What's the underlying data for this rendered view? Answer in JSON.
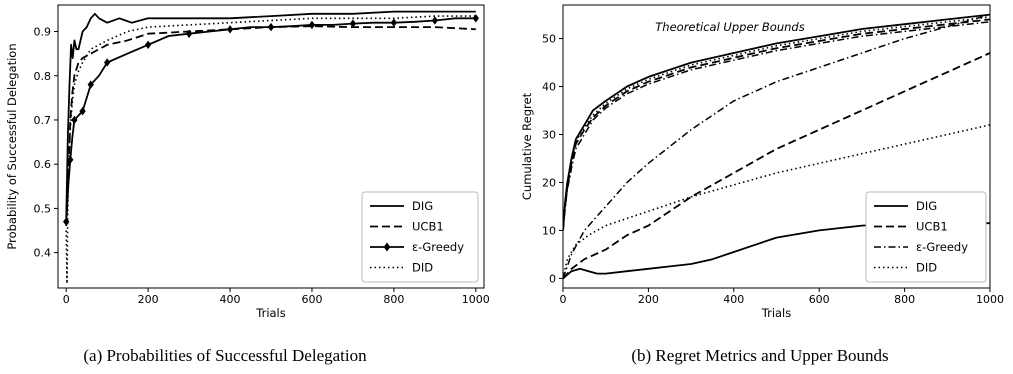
{
  "chart_data": [
    {
      "type": "line",
      "panel": "a",
      "caption": "(a) Probabilities of Successful Delegation",
      "xlabel": "Trials",
      "ylabel": "Probability of Successful Delegation",
      "xlim": [
        -20,
        1020
      ],
      "ylim": [
        0.32,
        0.96
      ],
      "xticks": [
        0,
        200,
        400,
        600,
        800,
        1000
      ],
      "yticks": [
        0.4,
        0.5,
        0.6,
        0.7,
        0.8,
        0.9
      ],
      "ytick_labels": [
        "0.4",
        "0.5",
        "0.6",
        "0.7",
        "0.8",
        "0.9"
      ],
      "grid": false,
      "legend_position": "bottom-right",
      "series": [
        {
          "name": "DIG",
          "style": "solid",
          "marker": "none",
          "x": [
            0,
            4,
            8,
            12,
            16,
            20,
            25,
            30,
            40,
            50,
            60,
            70,
            80,
            100,
            130,
            160,
            200,
            300,
            400,
            500,
            600,
            700,
            800,
            900,
            1000
          ],
          "y": [
            0.47,
            0.66,
            0.78,
            0.87,
            0.84,
            0.88,
            0.86,
            0.86,
            0.9,
            0.91,
            0.93,
            0.94,
            0.93,
            0.92,
            0.93,
            0.92,
            0.93,
            0.93,
            0.93,
            0.935,
            0.94,
            0.94,
            0.945,
            0.945,
            0.945
          ]
        },
        {
          "name": "UCB1",
          "style": "dashed",
          "marker": "none",
          "x": [
            0,
            5,
            10,
            15,
            20,
            30,
            40,
            60,
            80,
            100,
            150,
            200,
            300,
            400,
            500,
            600,
            700,
            800,
            900,
            1000
          ],
          "y": [
            0.46,
            0.55,
            0.7,
            0.76,
            0.8,
            0.83,
            0.84,
            0.85,
            0.86,
            0.87,
            0.88,
            0.895,
            0.9,
            0.905,
            0.91,
            0.912,
            0.91,
            0.91,
            0.91,
            0.905
          ]
        },
        {
          "name": "ε-Greedy",
          "style": "solid",
          "marker": "diamond",
          "x": [
            0,
            5,
            10,
            15,
            20,
            30,
            40,
            50,
            60,
            80,
            100,
            150,
            200,
            250,
            300,
            350,
            400,
            450,
            500,
            550,
            600,
            650,
            700,
            750,
            800,
            850,
            900,
            950,
            1000
          ],
          "y": [
            0.47,
            0.55,
            0.61,
            0.66,
            0.7,
            0.71,
            0.72,
            0.75,
            0.78,
            0.8,
            0.83,
            0.85,
            0.87,
            0.89,
            0.895,
            0.9,
            0.905,
            0.91,
            0.91,
            0.912,
            0.915,
            0.915,
            0.918,
            0.92,
            0.92,
            0.922,
            0.925,
            0.93,
            0.93
          ]
        },
        {
          "name": "DID",
          "style": "dotted",
          "marker": "none",
          "x": [
            0,
            2,
            4,
            6,
            10,
            15,
            20,
            30,
            40,
            60,
            80,
            100,
            150,
            200,
            300,
            400,
            500,
            600,
            700,
            800,
            900,
            1000
          ],
          "y": [
            0.45,
            0.33,
            0.5,
            0.6,
            0.68,
            0.74,
            0.78,
            0.81,
            0.83,
            0.86,
            0.87,
            0.88,
            0.9,
            0.91,
            0.915,
            0.92,
            0.925,
            0.93,
            0.93,
            0.93,
            0.935,
            0.935
          ]
        }
      ]
    },
    {
      "type": "line",
      "panel": "b",
      "caption": "(b) Regret Metrics and Upper Bounds",
      "xlabel": "Trials",
      "ylabel": "Cumulative Regret",
      "annotation": "Theoretical Upper Bounds",
      "xlim": [
        0,
        1000
      ],
      "ylim": [
        -2,
        57
      ],
      "xticks": [
        0,
        200,
        400,
        600,
        800,
        1000
      ],
      "yticks": [
        0,
        10,
        20,
        30,
        40,
        50
      ],
      "grid": false,
      "legend_position": "bottom-right",
      "series": [
        {
          "name": "DIG",
          "style": "solid",
          "marker": "none",
          "x": [
            0,
            20,
            40,
            60,
            80,
            100,
            150,
            200,
            250,
            300,
            350,
            400,
            450,
            500,
            600,
            700,
            800,
            900,
            1000
          ],
          "y": [
            0,
            1.5,
            2,
            1.5,
            1,
            1,
            1.5,
            2,
            2.5,
            3,
            4,
            5.5,
            7,
            8.5,
            10,
            11,
            11.5,
            11.5,
            11.5
          ]
        },
        {
          "name": "UCB1",
          "style": "dashed",
          "marker": "none",
          "x": [
            0,
            20,
            50,
            100,
            150,
            200,
            300,
            400,
            500,
            600,
            700,
            800,
            900,
            1000
          ],
          "y": [
            0,
            2,
            4,
            6,
            9,
            11,
            17,
            22,
            27,
            31,
            35,
            39,
            43,
            47
          ]
        },
        {
          "name": "ε-Greedy",
          "style": "dashdot",
          "marker": "none",
          "x": [
            0,
            20,
            50,
            100,
            150,
            200,
            300,
            400,
            500,
            600,
            700,
            800,
            900,
            1000
          ],
          "y": [
            0,
            5,
            10,
            15,
            20,
            24,
            31,
            37,
            41,
            44,
            47,
            50,
            52.5,
            55
          ]
        },
        {
          "name": "DID",
          "style": "dotted",
          "marker": "none",
          "x": [
            0,
            10,
            30,
            60,
            100,
            150,
            200,
            300,
            400,
            500,
            600,
            700,
            800,
            900,
            1000
          ],
          "y": [
            0,
            4,
            7,
            9,
            11,
            12.5,
            14,
            17,
            19.5,
            22,
            24,
            26,
            28,
            30,
            32
          ]
        },
        {
          "name": "",
          "style": "solid",
          "marker": "none",
          "x": [
            0,
            5,
            10,
            20,
            30,
            50,
            70,
            100,
            150,
            200,
            300,
            400,
            500,
            600,
            700,
            800,
            900,
            1000
          ],
          "y": [
            10,
            16,
            20,
            25,
            29,
            32,
            35,
            37,
            40,
            42,
            45,
            47,
            49,
            50.5,
            52,
            53,
            54,
            55
          ]
        },
        {
          "name": "",
          "style": "dashed",
          "marker": "none",
          "x": [
            0,
            5,
            10,
            20,
            30,
            50,
            70,
            100,
            150,
            200,
            300,
            400,
            500,
            600,
            700,
            800,
            900,
            1000
          ],
          "y": [
            10,
            15,
            19,
            24,
            28,
            31,
            33.5,
            36,
            39,
            41,
            44,
            46,
            48,
            49.5,
            51,
            52,
            53,
            54
          ]
        },
        {
          "name": "",
          "style": "dashdot",
          "marker": "none",
          "x": [
            0,
            5,
            10,
            20,
            30,
            50,
            70,
            100,
            150,
            200,
            300,
            400,
            500,
            600,
            700,
            800,
            900,
            1000
          ],
          "y": [
            10,
            14.5,
            18.5,
            23,
            27,
            30,
            33,
            35.5,
            38.5,
            40.5,
            43.5,
            45.5,
            47.5,
            49,
            50.5,
            51.5,
            52.5,
            53.5
          ]
        },
        {
          "name": "",
          "style": "dotted",
          "marker": "none",
          "x": [
            0,
            5,
            10,
            20,
            30,
            50,
            70,
            100,
            150,
            200,
            300,
            400,
            500,
            600,
            700,
            800,
            900,
            1000
          ],
          "y": [
            10,
            15.5,
            19.5,
            24.5,
            28.5,
            31.5,
            34,
            36.5,
            39.5,
            41.5,
            44.5,
            46.5,
            48.5,
            50,
            51.5,
            52.5,
            53.5,
            54.5
          ]
        }
      ]
    }
  ]
}
